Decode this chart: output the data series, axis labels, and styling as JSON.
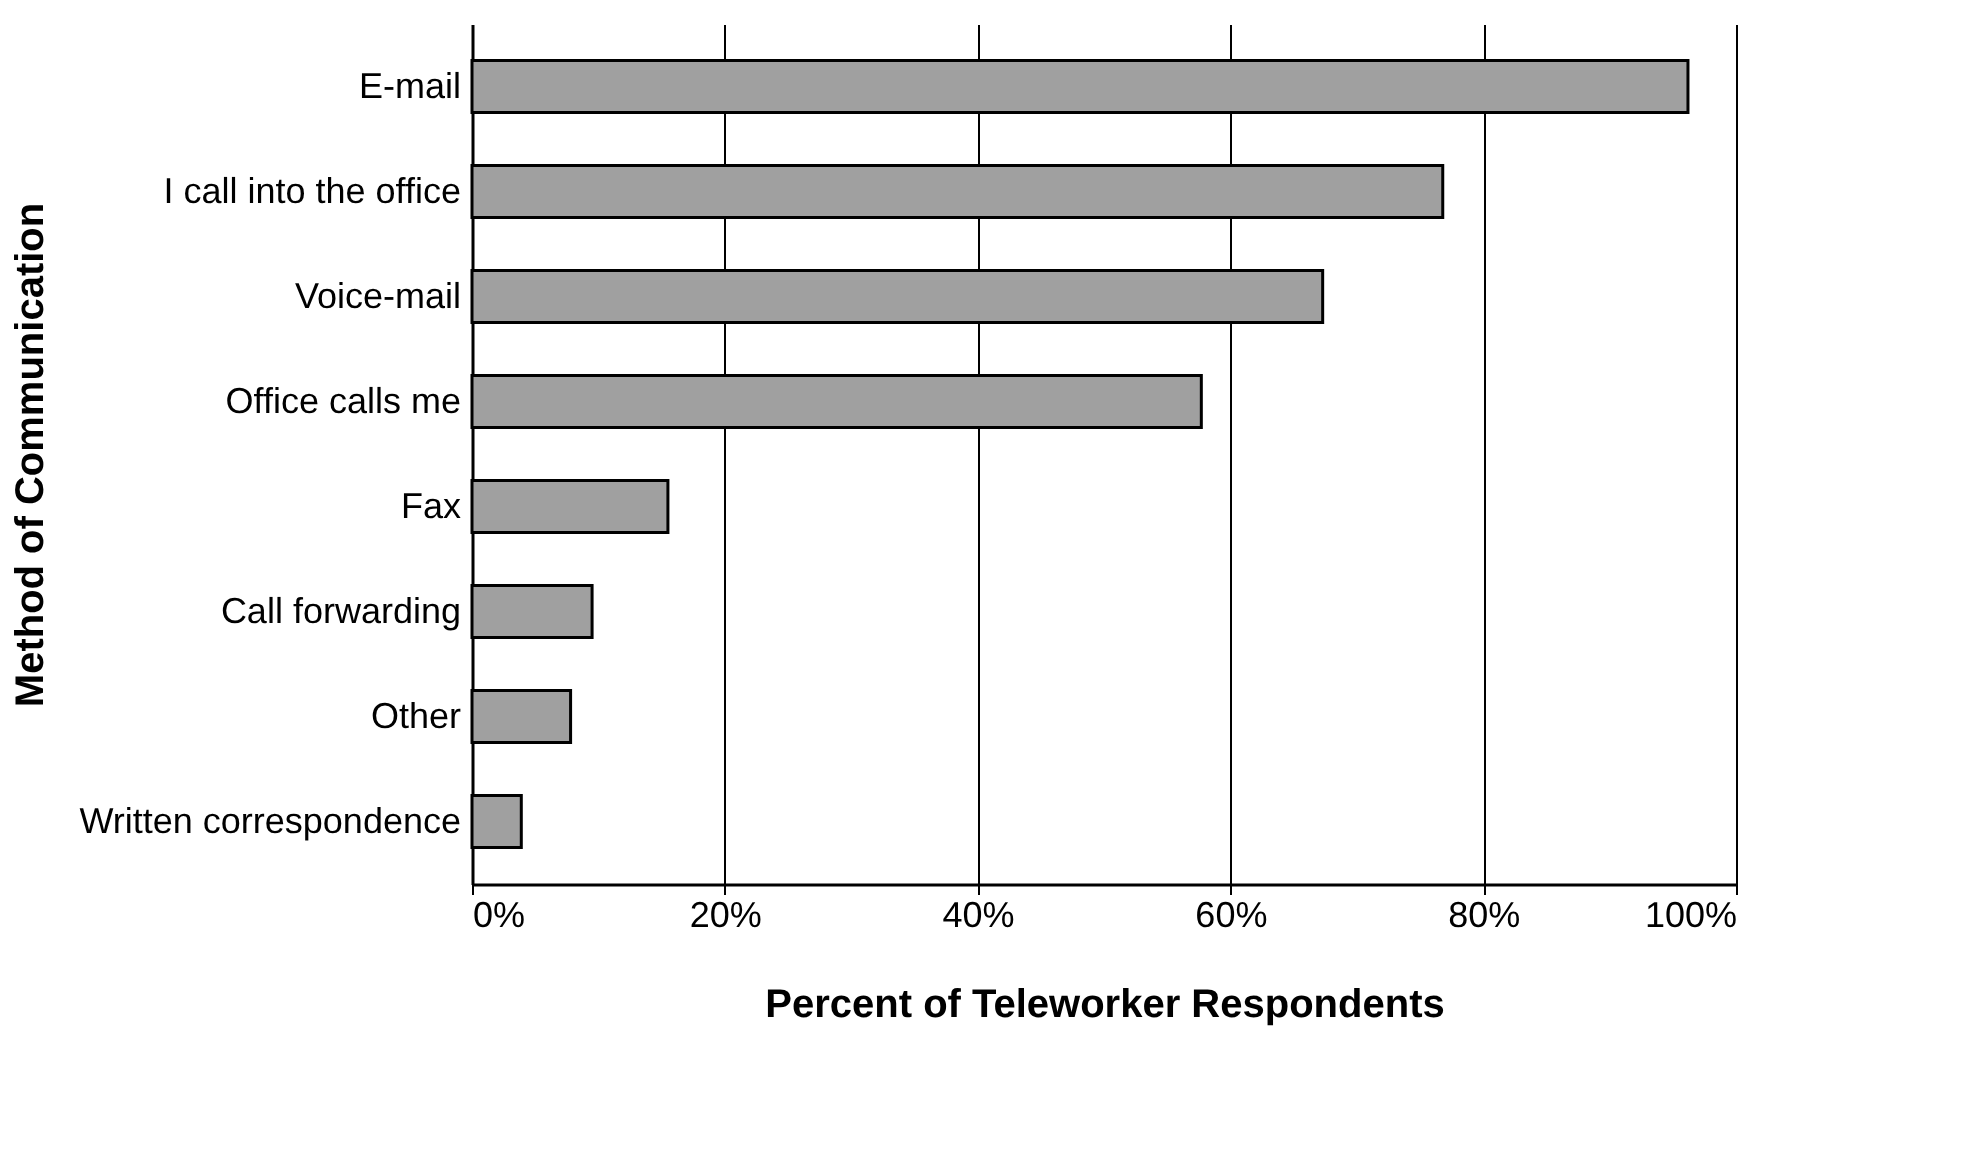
{
  "chart_data": {
    "type": "bar",
    "orientation": "horizontal",
    "categories": [
      "E-mail",
      "I call into the office",
      "Voice-mail",
      "Office calls me",
      "Fax",
      "Call forwarding",
      "Other",
      "Written correspondence"
    ],
    "values": [
      96.2,
      76.8,
      67.3,
      57.7,
      15.5,
      9.5,
      7.8,
      3.9
    ],
    "color": "#a0a0a0",
    "xlim": [
      0,
      100
    ],
    "xticks": [
      {
        "value": 0,
        "label": "0%"
      },
      {
        "value": 20,
        "label": "20%"
      },
      {
        "value": 40,
        "label": "40%"
      },
      {
        "value": 60,
        "label": "60%"
      },
      {
        "value": 80,
        "label": "80%"
      },
      {
        "value": 100,
        "label": "100%"
      }
    ],
    "xlabel": "Percent of Teleworker Respondents",
    "ylabel": "Method of Communication",
    "grid": "x"
  }
}
